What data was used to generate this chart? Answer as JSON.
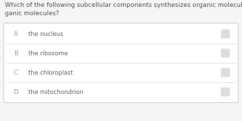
{
  "question": "Which of the following subcellular components synthesizes organic molecules from inor-\nganic molecules?",
  "options": [
    {
      "label": "A",
      "text": "the nucleus"
    },
    {
      "label": "B",
      "text": "the ribosome"
    },
    {
      "label": "C",
      "text": "the chloroplast"
    },
    {
      "label": "D",
      "text": "the mitochondrion"
    }
  ],
  "background_color": "#f5f5f5",
  "box_bg_color": "#ffffff",
  "box_border_color": "#cccccc",
  "option_divider_color": "#e0e0e0",
  "label_color": "#999999",
  "text_color": "#666666",
  "question_color": "#555555",
  "radio_color": "#dddddd",
  "question_fontsize": 6.5,
  "option_fontsize": 6.2,
  "label_fontsize": 6.5
}
